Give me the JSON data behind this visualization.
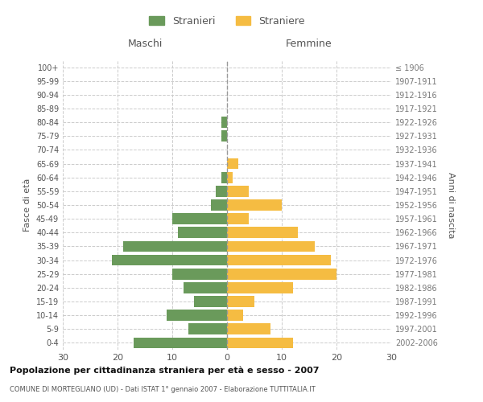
{
  "age_groups": [
    "0-4",
    "5-9",
    "10-14",
    "15-19",
    "20-24",
    "25-29",
    "30-34",
    "35-39",
    "40-44",
    "45-49",
    "50-54",
    "55-59",
    "60-64",
    "65-69",
    "70-74",
    "75-79",
    "80-84",
    "85-89",
    "90-94",
    "95-99",
    "100+"
  ],
  "birth_years": [
    "2002-2006",
    "1997-2001",
    "1992-1996",
    "1987-1991",
    "1982-1986",
    "1977-1981",
    "1972-1976",
    "1967-1971",
    "1962-1966",
    "1957-1961",
    "1952-1956",
    "1947-1951",
    "1942-1946",
    "1937-1941",
    "1932-1936",
    "1927-1931",
    "1922-1926",
    "1917-1921",
    "1912-1916",
    "1907-1911",
    "≤ 1906"
  ],
  "males": [
    17,
    7,
    11,
    6,
    8,
    10,
    21,
    19,
    9,
    10,
    3,
    2,
    1,
    0,
    0,
    1,
    1,
    0,
    0,
    0,
    0
  ],
  "females": [
    12,
    8,
    3,
    5,
    12,
    20,
    19,
    16,
    13,
    4,
    10,
    4,
    1,
    2,
    0,
    0,
    0,
    0,
    0,
    0,
    0
  ],
  "male_color": "#6a9a5b",
  "female_color": "#f5bc42",
  "title": "Popolazione per cittadinanza straniera per età e sesso - 2007",
  "subtitle": "COMUNE DI MORTEGLIANO (UD) - Dati ISTAT 1° gennaio 2007 - Elaborazione TUTTITALIA.IT",
  "ylabel_left": "Fasce di età",
  "ylabel_right": "Anni di nascita",
  "xlabel_left": "Maschi",
  "xlabel_right": "Femmine",
  "legend_stranieri": "Stranieri",
  "legend_straniere": "Straniere",
  "xlim": 30,
  "background_color": "#ffffff",
  "grid_color": "#cccccc",
  "bar_height": 0.8
}
